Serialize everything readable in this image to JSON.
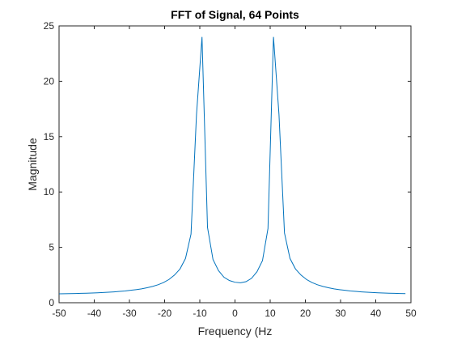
{
  "chart_data": {
    "type": "line",
    "title": "FFT of Signal, 64 Points",
    "xlabel": "Frequency (Hz",
    "ylabel": "Magnitude",
    "xlim": [
      -50,
      50
    ],
    "ylim": [
      0,
      25
    ],
    "xticks": [
      -50,
      -40,
      -30,
      -20,
      -10,
      0,
      10,
      20,
      30,
      40,
      50
    ],
    "yticks": [
      0,
      5,
      10,
      15,
      20,
      25
    ],
    "grid": false,
    "line_color": "#0072bd",
    "x": [
      -50,
      -48.4375,
      -46.875,
      -45.3125,
      -43.75,
      -42.1875,
      -40.625,
      -39.0625,
      -37.5,
      -35.9375,
      -34.375,
      -32.8125,
      -31.25,
      -29.6875,
      -28.125,
      -26.5625,
      -25,
      -23.4375,
      -21.875,
      -20.3125,
      -18.75,
      -17.1875,
      -15.625,
      -14.0625,
      -12.5,
      -10.9375,
      -9.375,
      -7.8125,
      -6.25,
      -4.6875,
      -3.125,
      -1.5625,
      0,
      1.5625,
      3.125,
      4.6875,
      6.25,
      7.8125,
      9.375,
      10.9375,
      12.5,
      14.0625,
      15.625,
      17.1875,
      18.75,
      20.3125,
      21.875,
      23.4375,
      25,
      26.5625,
      28.125,
      29.6875,
      31.25,
      32.8125,
      34.375,
      35.9375,
      37.5,
      39.0625,
      40.625,
      42.1875,
      43.75,
      45.3125,
      46.875,
      48.4375
    ],
    "y": [
      0.8,
      0.81,
      0.82,
      0.83,
      0.85,
      0.86,
      0.88,
      0.9,
      0.92,
      0.95,
      0.98,
      1.02,
      1.06,
      1.12,
      1.18,
      1.25,
      1.35,
      1.47,
      1.62,
      1.82,
      2.1,
      2.5,
      3.05,
      4.0,
      6.2,
      17.0,
      24.0,
      6.8,
      3.9,
      2.9,
      2.3,
      2.0,
      1.85,
      1.8,
      1.9,
      2.2,
      2.8,
      3.8,
      6.7,
      24.0,
      17.0,
      6.3,
      4.0,
      3.05,
      2.5,
      2.1,
      1.82,
      1.62,
      1.47,
      1.35,
      1.25,
      1.18,
      1.12,
      1.06,
      1.02,
      0.98,
      0.95,
      0.92,
      0.9,
      0.88,
      0.86,
      0.85,
      0.83,
      0.82
    ]
  }
}
